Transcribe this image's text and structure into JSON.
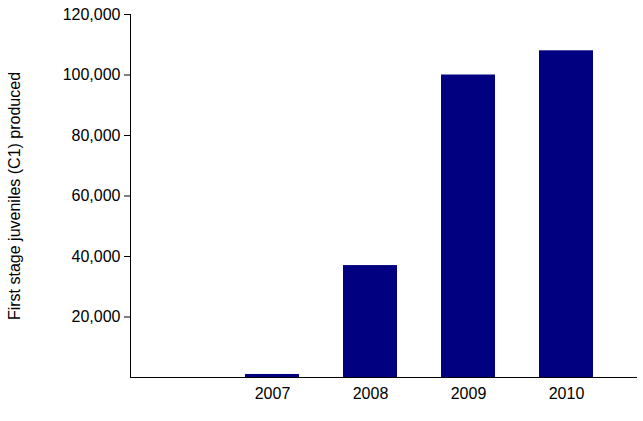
{
  "chart_data": {
    "type": "bar",
    "y_label": "First stage juveniles (C1) produced",
    "categories": [
      "2007",
      "2008",
      "2009",
      "2010"
    ],
    "values": [
      1000,
      37000,
      100000,
      108000
    ],
    "color": "#000080",
    "ylim": [
      0,
      120000
    ],
    "yticks": [
      {
        "value": 20000,
        "label": "20,000"
      },
      {
        "value": 40000,
        "label": "40,000"
      },
      {
        "value": 60000,
        "label": "60,000"
      },
      {
        "value": 80000,
        "label": "80,000"
      },
      {
        "value": 100000,
        "label": "100,000"
      },
      {
        "value": 120000,
        "label": "120,000"
      }
    ],
    "grid": false
  }
}
